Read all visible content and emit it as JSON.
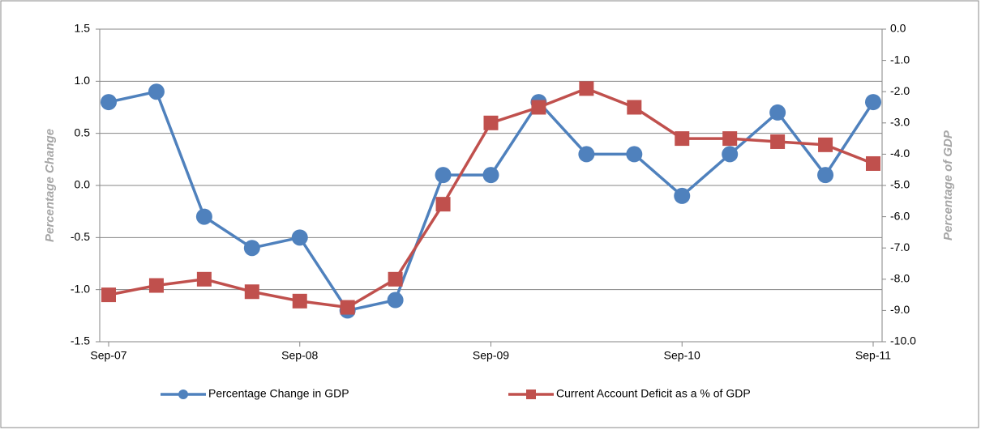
{
  "chart_data": {
    "type": "line",
    "categories": [
      "Sep-07",
      null,
      null,
      null,
      "Sep-08",
      null,
      null,
      null,
      "Sep-09",
      null,
      null,
      null,
      "Sep-10",
      null,
      null,
      null,
      "Sep-11"
    ],
    "series": [
      {
        "name": "Percentage Change in GDP",
        "color": "#4f81bd",
        "marker": "circle",
        "values": [
          0.8,
          0.9,
          -0.3,
          -0.6,
          -0.5,
          -1.2,
          -1.1,
          0.1,
          0.1,
          0.8,
          0.3,
          0.3,
          -0.1,
          0.3,
          0.7,
          0.1,
          0.8
        ]
      },
      {
        "name": "Current Account Deficit as a % of GDP",
        "color": "#c0504d",
        "marker": "square",
        "axis": "y2",
        "values": [
          -8.5,
          -8.2,
          -8.0,
          -8.4,
          -8.7,
          -8.9,
          -8.0,
          -5.6,
          -3.0,
          -2.5,
          -1.9,
          -2.5,
          -3.5,
          -3.5,
          -3.6,
          -3.7,
          -4.3
        ]
      }
    ],
    "ylabel": "Percentage Change",
    "y2label": "Percentage of GDP",
    "ylim": [
      -1.5,
      1.5
    ],
    "yticks": [
      -1.5,
      {
        "value": -1,
        "label": "-1.0"
      },
      -0.5,
      {
        "value": 0,
        "label": "0.0"
      },
      0.5,
      {
        "value": 1,
        "label": "1.0"
      },
      1.5
    ],
    "y2lim": [
      -10,
      0
    ],
    "y2ticks": [
      {
        "value": -10,
        "label": "-10.0"
      },
      {
        "value": -9,
        "label": "-9.0"
      },
      {
        "value": -8,
        "label": "-8.0"
      },
      {
        "value": -7,
        "label": "-7.0"
      },
      {
        "value": -6,
        "label": "-6.0"
      },
      {
        "value": -5,
        "label": "-5.0"
      },
      {
        "value": -4,
        "label": "-4.0"
      },
      {
        "value": -3,
        "label": "-3.0"
      },
      {
        "value": -2,
        "label": "-2.0"
      },
      {
        "value": -1,
        "label": "-1.0"
      },
      {
        "value": 0,
        "label": "0.0"
      }
    ],
    "grid": true,
    "legend": "bottom"
  }
}
